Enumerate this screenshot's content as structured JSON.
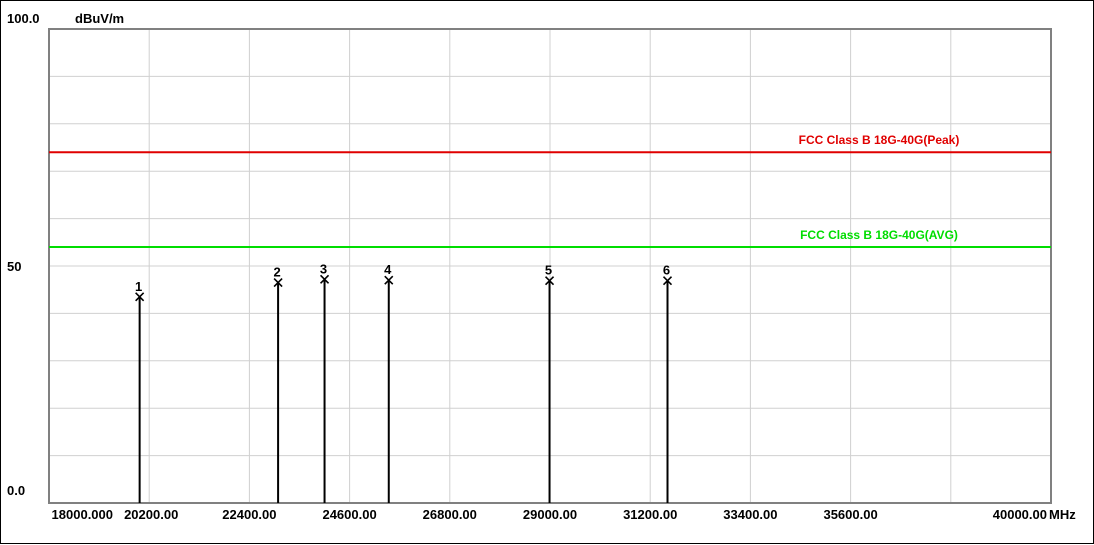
{
  "chart_data": {
    "type": "bar",
    "title": "",
    "ylabel": "dBuV/m",
    "xunit": "MHz",
    "xlim": [
      18000,
      40000
    ],
    "ylim": [
      0,
      100
    ],
    "x_tick_values": [
      18000,
      20200,
      22400,
      24600,
      26800,
      29000,
      31200,
      33400,
      35600,
      40000
    ],
    "x_tick_labels": [
      "18000.000",
      "20200.00",
      "22400.00",
      "24600.00",
      "26800.00",
      "29000.00",
      "31200.00",
      "33400.00",
      "35600.00",
      "40000.00"
    ],
    "y_tick_values": [
      100,
      50,
      0
    ],
    "y_tick_labels": [
      "100.0",
      "50",
      "0.0"
    ],
    "grid": true,
    "limit_lines": [
      {
        "name": "FCC Class B 18G-40G(Peak)",
        "value": 74.0,
        "color": "#e00000"
      },
      {
        "name": "FCC Class B 18G-40G(AVG)",
        "value": 54.0,
        "color": "#00dd00"
      }
    ],
    "markers": [
      {
        "label": "1",
        "x": 19990,
        "y": 43.5
      },
      {
        "label": "2",
        "x": 23030,
        "y": 46.5
      },
      {
        "label": "3",
        "x": 24050,
        "y": 47.2
      },
      {
        "label": "4",
        "x": 25460,
        "y": 47.0
      },
      {
        "label": "5",
        "x": 28990,
        "y": 46.9
      },
      {
        "label": "6",
        "x": 31580,
        "y": 46.9
      }
    ]
  }
}
